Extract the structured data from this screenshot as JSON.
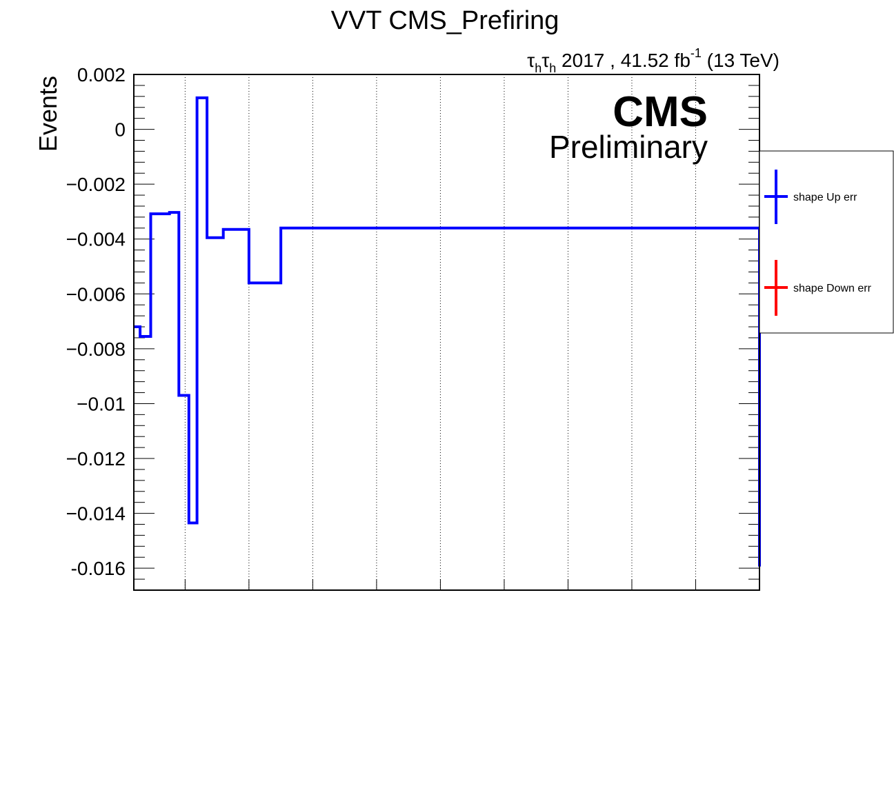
{
  "chart_data": {
    "type": "line",
    "title": "VVT CMS_Prefiring",
    "ylabel": "Events",
    "xlabel": "",
    "lumi": {
      "channel_sym1": "τ",
      "channel_sub1": "h",
      "channel_sym2": "τ",
      "channel_sub2": "h",
      "text": " 2017 , 41.52 fb",
      "sup": "-1",
      "energy": " (13 TeV)"
    },
    "cms_label": "CMS",
    "preliminary_label": "Preliminary",
    "xlim": [
      0,
      100
    ],
    "ylim": [
      -0.0168,
      0.002
    ],
    "yticks": [
      0.002,
      0,
      -0.002,
      -0.004,
      -0.006,
      -0.008,
      -0.01,
      -0.012,
      -0.014,
      -0.016
    ],
    "ytick_labels": [
      "0.002",
      "0",
      "−0.002",
      "−0.004",
      "−0.006",
      "−0.008",
      "−0.01",
      "−0.012",
      "−0.014",
      "-0.016"
    ],
    "xgrid": [
      8.2,
      18.4,
      28.6,
      38.8,
      49.0,
      59.2,
      69.4,
      79.6,
      89.8
    ],
    "grid": "vertical dotted",
    "legend_position": "right, outside plot",
    "series": [
      {
        "name": "shape Up err",
        "color": "#0000ff",
        "draw": "step",
        "edges": [
          0,
          1.0,
          2.7,
          5.7,
          7.2,
          8.8,
          10.1,
          11.7,
          14.3,
          18.4,
          23.5,
          100
        ],
        "values": [
          -0.0072,
          -0.00755,
          -0.00308,
          -0.00303,
          -0.0097,
          -0.01435,
          0.00115,
          -0.00395,
          -0.00365,
          -0.0056,
          -0.0036,
          -0.01594
        ]
      },
      {
        "name": "shape Down err",
        "color": "#ff0000",
        "draw": "legend-only",
        "edges": [],
        "values": []
      }
    ]
  }
}
